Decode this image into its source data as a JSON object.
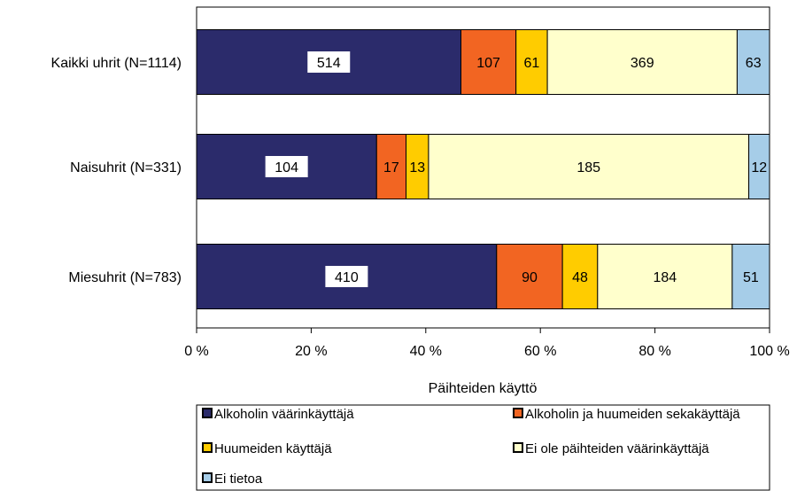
{
  "chart_data": {
    "type": "bar",
    "orientation": "horizontal",
    "stacked": "percent",
    "categories": [
      "Kaikki uhrit (N=1114)",
      "Naisuhrit (N=331)",
      "Miesuhrit (N=783)"
    ],
    "series": [
      {
        "name": "Alkoholin väärinkäyttäjä",
        "values": [
          514,
          104,
          410
        ],
        "color": "#2b2b6b"
      },
      {
        "name": "Alkoholin ja huumeiden sekakäyttäjä",
        "values": [
          107,
          17,
          90
        ],
        "color": "#f26522"
      },
      {
        "name": "Huumeiden käyttäjä",
        "values": [
          61,
          13,
          48
        ],
        "color": "#ffcc00"
      },
      {
        "name": "Ei ole päihteiden väärinkäyttäjä",
        "values": [
          369,
          185,
          184
        ],
        "color": "#ffffcc"
      },
      {
        "name": "Ei tietoa",
        "values": [
          63,
          12,
          51
        ],
        "color": "#a6cde8"
      }
    ],
    "xlabel": "Päihteiden käyttö",
    "ylabel": "",
    "title": "",
    "xlim": [
      0,
      100
    ],
    "x_ticks": [
      "0 %",
      "20 %",
      "40 %",
      "60 %",
      "80 %",
      "100 %"
    ],
    "grid": false,
    "legend_position": "bottom"
  }
}
